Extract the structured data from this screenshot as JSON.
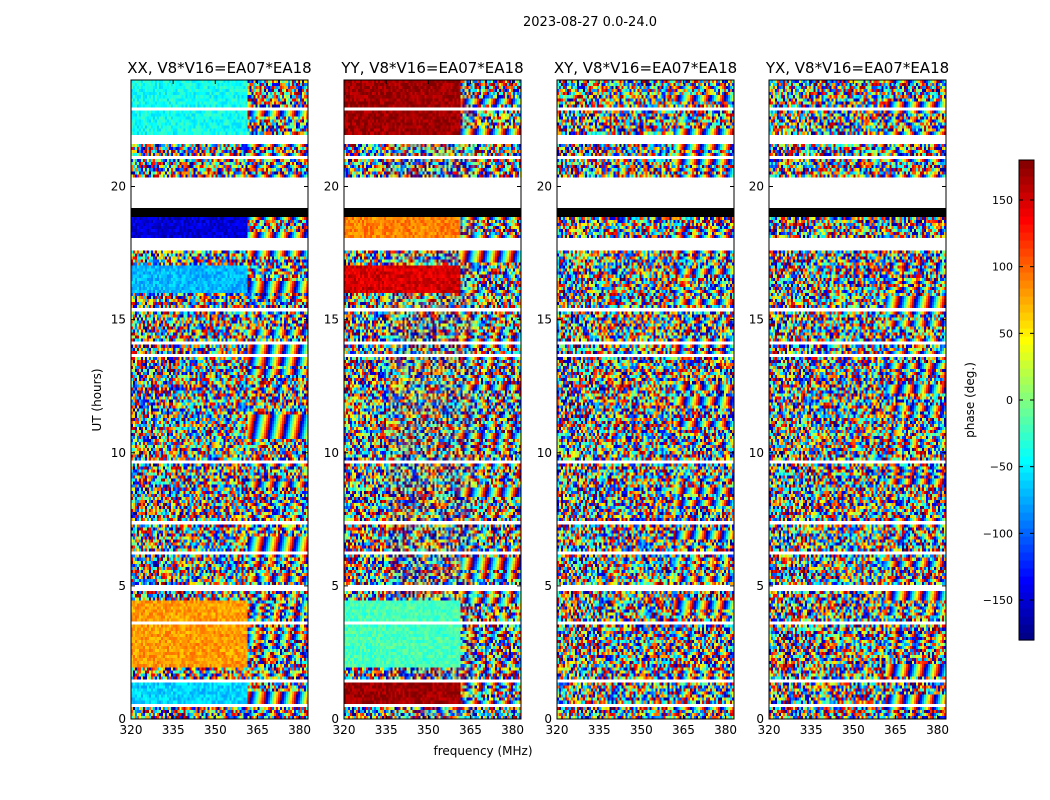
{
  "chart_data": {
    "type": "heatmap",
    "title": "2023-08-27 0.0-24.0",
    "xlabel": "frequency (MHz)",
    "ylabel": "UT (hours)",
    "xlim": [
      320,
      383
    ],
    "ylim": [
      0,
      24
    ],
    "x_ticks": [
      "320",
      "335",
      "350",
      "365",
      "380"
    ],
    "x_tick_values": [
      320,
      335,
      350,
      365,
      380
    ],
    "y_ticks": [
      "0",
      "5",
      "10",
      "15",
      "20"
    ],
    "y_tick_values": [
      0,
      5,
      10,
      15,
      20
    ],
    "colorbar": {
      "label": "phase (deg.)",
      "range": [
        -180,
        180
      ],
      "ticks": [
        "−150",
        "−100",
        "−50",
        "0",
        "50",
        "100",
        "150"
      ],
      "tick_values": [
        -150,
        -100,
        -50,
        0,
        50,
        100,
        150
      ],
      "colormap": "jet"
    },
    "panels": [
      {
        "title": "XX, V8*V16=EA07*EA18",
        "low_freq_phase": {
          "0.5-1.5": -60,
          "2-4.5": 80,
          "16-17": -70,
          "18-19": -150,
          "22-24": -40
        }
      },
      {
        "title": "YY, V8*V16=EA07*EA18",
        "low_freq_phase": {
          "0.5-1.5": 170,
          "2-4.5": -20,
          "16-17": 150,
          "18-19": 90,
          "22-24": 170
        }
      },
      {
        "title": "XY, V8*V16=EA07*EA18",
        "low_freq_phase": {}
      },
      {
        "title": "YX, V8*V16=EA07*EA18",
        "low_freq_phase": {}
      }
    ],
    "flagged_ut_ranges": [
      [
        0.5,
        0.55
      ],
      [
        1.35,
        1.45
      ],
      [
        3.6,
        3.65
      ],
      [
        4.85,
        5.05
      ],
      [
        6.2,
        6.3
      ],
      [
        7.3,
        7.4
      ],
      [
        8.4,
        8.5
      ],
      [
        9.6,
        9.7
      ],
      [
        13.6,
        13.75
      ],
      [
        14.1,
        14.2
      ],
      [
        15.3,
        15.45
      ],
      [
        17.6,
        18.1
      ],
      [
        19.1,
        20.3
      ],
      [
        21.0,
        21.15
      ],
      [
        21.6,
        22.0
      ],
      [
        22.9,
        23.0
      ]
    ],
    "black_ut_ranges": [
      [
        18.9,
        19.2
      ]
    ],
    "rfi_edge_freq_mhz": 361
  }
}
